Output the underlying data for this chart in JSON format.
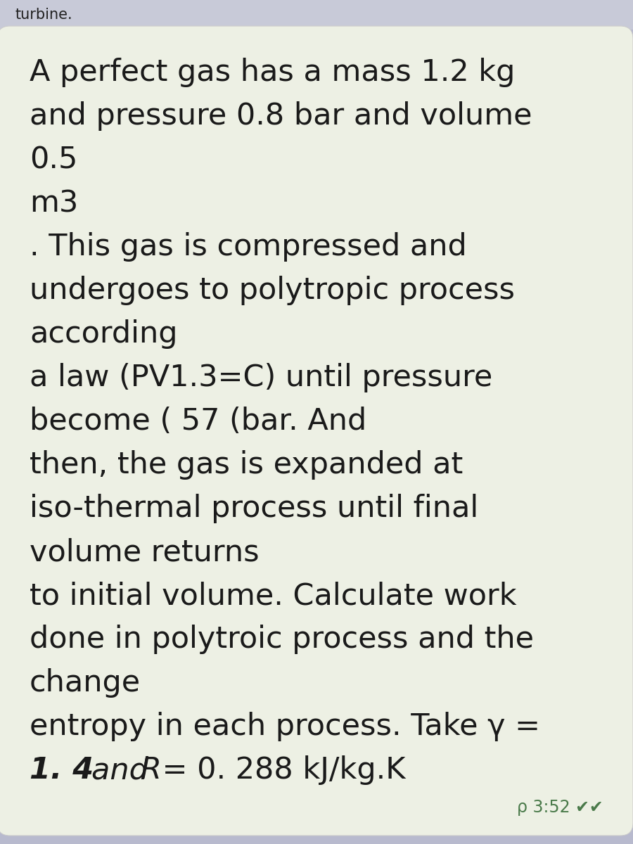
{
  "background_color": "#b8bace",
  "card_color": "#edf0e4",
  "text_color": "#1a1a1a",
  "timestamp_color": "#4a7a4a",
  "figsize": [
    9.0,
    12.0
  ],
  "dpi": 100,
  "main_text_lines": [
    {
      "text": "A perfect gas has a mass 1.2 kg",
      "style": "normal"
    },
    {
      "text": "and pressure 0.8 bar and volume",
      "style": "normal"
    },
    {
      "text": "0.5",
      "style": "normal"
    },
    {
      "text": "m3",
      "style": "normal"
    },
    {
      "text": ". This gas is compressed and",
      "style": "normal"
    },
    {
      "text": "undergoes to polytropic process",
      "style": "normal"
    },
    {
      "text": "according",
      "style": "normal"
    },
    {
      "text": "a law (PV1.3=C) until pressure",
      "style": "normal"
    },
    {
      "text": "become ( 57 (bar. And",
      "style": "normal"
    },
    {
      "text": "then, the gas is expanded at",
      "style": "normal"
    },
    {
      "text": "iso-thermal process until final",
      "style": "normal"
    },
    {
      "text": "volume returns",
      "style": "normal"
    },
    {
      "text": "to initial volume. Calculate work",
      "style": "normal"
    },
    {
      "text": "done in polytroic process and the",
      "style": "normal"
    },
    {
      "text": "change",
      "style": "normal"
    },
    {
      "text": "entropy in each process. Take γ =",
      "style": "normal"
    },
    {
      "text": "1. 4 and R = 0. 288 kJ/kg.K",
      "style": "italic_mixed"
    }
  ],
  "italic_parts": [
    {
      "text": "1. 4 ",
      "italic": true,
      "bold": true
    },
    {
      "text": "and ",
      "italic": true,
      "bold": false
    },
    {
      "text": "R",
      "italic": true,
      "bold": false
    },
    {
      "text": " = 0. 288 kJ/kg.K",
      "italic": false,
      "bold": false
    }
  ]
}
